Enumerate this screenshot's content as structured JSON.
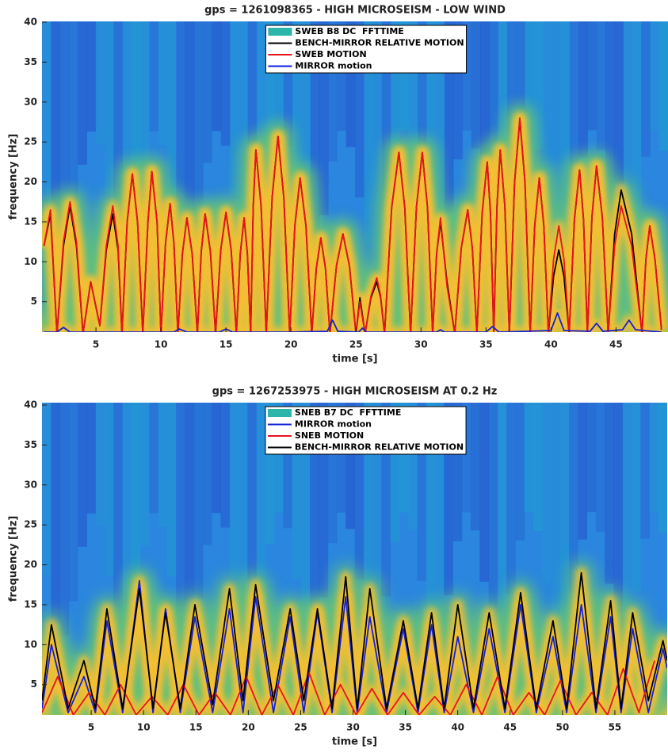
{
  "chart_data": [
    {
      "type": "line",
      "title": "gps = 1261098365 - HIGH MICROSEISM - LOW WIND",
      "xlabel": "time [s]",
      "ylabel": "frequency [Hz]",
      "xlim": [
        0.85,
        49
      ],
      "ylim": [
        1.2,
        40.1
      ],
      "xticks": [
        5,
        10,
        15,
        20,
        25,
        30,
        35,
        40,
        45
      ],
      "yticks": [
        5,
        10,
        15,
        20,
        25,
        30,
        35,
        40
      ],
      "legend": "top",
      "spectrogram": {
        "name": "SWEB B8 DC  FFTTIME",
        "color": "#2cb5a8"
      },
      "series": [
        {
          "name": "BENCH-MIRROR RELATIVE MOTION",
          "color": "#000000",
          "x": [
            1.0,
            1.5,
            2.0,
            2.5,
            3.0,
            3.5,
            4.0,
            4.6,
            5.3,
            5.8,
            6.3,
            6.7,
            7.0,
            7.4,
            7.8,
            8.2,
            8.6,
            9.0,
            9.3,
            9.7,
            10.0,
            10.35,
            10.7,
            11.0,
            11.3,
            11.65,
            12.0,
            12.4,
            12.8,
            13.1,
            13.4,
            13.8,
            14.2,
            14.6,
            15.0,
            15.4,
            15.8,
            16.1,
            16.4,
            16.65,
            16.9,
            17.1,
            17.3,
            17.7,
            18.1,
            18.55,
            19.0,
            19.45,
            19.9,
            20.3,
            20.7,
            21.15,
            21.6,
            21.95,
            22.3,
            22.65,
            23.0,
            23.5,
            24.0,
            24.5,
            25.0,
            25.3,
            25.7,
            26.15,
            26.6,
            26.9,
            27.2,
            27.75,
            28.3,
            28.75,
            29.2,
            29.65,
            30.1,
            30.5,
            30.9,
            31.2,
            31.5,
            32.0,
            32.6,
            33.1,
            33.6,
            33.95,
            34.3,
            34.7,
            35.1,
            35.35,
            35.6,
            35.85,
            36.1,
            36.45,
            36.8,
            37.2,
            37.6,
            38.0,
            38.4,
            38.75,
            39.1,
            39.45,
            39.8,
            40.2,
            40.6,
            41.0,
            41.4,
            41.8,
            42.2,
            42.5,
            42.8,
            43.15,
            43.5,
            43.95,
            44.4,
            44.9,
            45.4,
            46.2,
            47.0,
            47.3,
            47.6,
            48.0,
            48.5
          ],
          "values": [
            12,
            16,
            1,
            12,
            17,
            12,
            1,
            7.5,
            2,
            11.5,
            16,
            11.5,
            1,
            15,
            21,
            15,
            1,
            15,
            21.3,
            15,
            1,
            12.3,
            17.3,
            12.3,
            1,
            11,
            15.5,
            11,
            1,
            11.3,
            16,
            11.3,
            1,
            11.5,
            16.2,
            11.5,
            1,
            11,
            15.5,
            11,
            1,
            17,
            24,
            17,
            1,
            18,
            25.7,
            18,
            1,
            14.5,
            20.5,
            14.5,
            1,
            9.2,
            13,
            9.2,
            1,
            9.5,
            13.5,
            9.5,
            1,
            5.5,
            1,
            5.5,
            7.5,
            5.5,
            1,
            16.8,
            23.7,
            16.8,
            1,
            16.8,
            23.7,
            16.8,
            1,
            11,
            15,
            7.5,
            1,
            11.7,
            16.5,
            11.7,
            1,
            16,
            22.5,
            16,
            1,
            17,
            24,
            17,
            1,
            20,
            27.8,
            20,
            1,
            14.5,
            20.5,
            14.5,
            1,
            8.2,
            11.5,
            8.2,
            1,
            15.3,
            21.5,
            15.3,
            1,
            15.6,
            22,
            15.6,
            1,
            13.5,
            19,
            13.5,
            1,
            10.3,
            14.5,
            10.3,
            1.5
          ]
        },
        {
          "name": "SWEB MOTION",
          "color": "#e8141c",
          "x": [
            1.0,
            1.5,
            2.0,
            2.5,
            3.0,
            3.5,
            4.0,
            4.6,
            5.3,
            5.8,
            6.3,
            6.7,
            7.0,
            7.4,
            7.8,
            8.2,
            8.6,
            9.0,
            9.3,
            9.7,
            10.0,
            10.35,
            10.7,
            11.0,
            11.3,
            11.65,
            12.0,
            12.4,
            12.8,
            13.1,
            13.4,
            13.8,
            14.2,
            14.6,
            15.0,
            15.4,
            15.8,
            16.1,
            16.4,
            16.65,
            16.9,
            17.1,
            17.3,
            17.7,
            18.1,
            18.55,
            19.0,
            19.45,
            19.9,
            20.3,
            20.7,
            21.15,
            21.6,
            21.95,
            22.3,
            22.65,
            23.0,
            23.5,
            24.0,
            24.5,
            25.0,
            25.3,
            25.7,
            26.15,
            26.6,
            26.9,
            27.2,
            27.75,
            28.3,
            28.75,
            29.2,
            29.65,
            30.1,
            30.5,
            30.9,
            31.2,
            31.5,
            32.0,
            32.6,
            33.1,
            33.6,
            33.95,
            34.3,
            34.7,
            35.1,
            35.35,
            35.6,
            35.85,
            36.1,
            36.45,
            36.8,
            37.2,
            37.6,
            38.0,
            38.4,
            38.75,
            39.1,
            39.45,
            39.8,
            40.2,
            40.6,
            41.0,
            41.4,
            41.8,
            42.2,
            42.5,
            42.8,
            43.15,
            43.5,
            43.95,
            44.4,
            44.9,
            45.4,
            46.2,
            47.0,
            47.3,
            47.6,
            48.0,
            48.5
          ],
          "values": [
            12,
            16.5,
            1,
            12.5,
            17.5,
            12.5,
            1,
            7.5,
            2,
            12,
            17,
            12,
            1,
            15,
            21,
            15,
            1,
            15,
            21.3,
            15,
            1,
            12.3,
            17.3,
            12.3,
            1,
            11,
            15.5,
            11,
            1,
            11.3,
            16,
            11.3,
            1,
            11.5,
            16.2,
            11.5,
            1,
            11,
            15.5,
            11,
            1,
            17,
            24,
            17,
            1,
            18,
            25.7,
            18,
            1,
            14.5,
            20.5,
            14.5,
            1,
            9.2,
            13,
            9.2,
            1,
            9.5,
            13.5,
            9.5,
            1,
            5,
            1,
            5.7,
            8,
            5.7,
            1,
            16.8,
            23.7,
            16.8,
            1,
            16.8,
            23.7,
            16.8,
            1,
            11,
            15.5,
            7,
            1,
            11.7,
            16.5,
            11.7,
            1,
            16,
            22.5,
            16,
            1,
            17,
            24,
            17,
            1,
            20,
            28,
            20,
            1,
            14.5,
            20.5,
            14.5,
            1,
            10.3,
            14.5,
            10.3,
            1,
            15.3,
            21.5,
            15.3,
            1,
            15.6,
            22,
            15.6,
            1,
            12,
            17,
            12,
            1,
            10.3,
            14.5,
            10.3,
            1.5
          ]
        },
        {
          "name": "MIRROR motion",
          "color": "#1420d8",
          "x": [
            1,
            2,
            2.5,
            3,
            8,
            11,
            11.4,
            12,
            14.5,
            15,
            15.5,
            20,
            22.8,
            23.2,
            23.6,
            25.2,
            25.5,
            25.8,
            28,
            31.2,
            31.5,
            31.8,
            35,
            35.5,
            36,
            40,
            40.5,
            41,
            43,
            43.5,
            44,
            45.5,
            46,
            46.5,
            48.5
          ],
          "values": [
            1.2,
            1.2,
            1.8,
            1.2,
            1.2,
            1.2,
            1.6,
            1.2,
            1.2,
            1.6,
            1.2,
            1.2,
            1.3,
            2.7,
            1.3,
            1.2,
            1.7,
            1.2,
            1.2,
            1.2,
            1.5,
            1.2,
            1.2,
            1.9,
            1.2,
            1.4,
            3.6,
            1.4,
            1.3,
            2.3,
            1.3,
            1.5,
            2.7,
            1.5,
            1.2
          ]
        }
      ]
    },
    {
      "type": "line",
      "title": "gps = 1267253975 - HIGH MICROSEISM AT 0.2 Hz",
      "xlabel": "time [s]",
      "ylabel": "frequency [Hz]",
      "xlim": [
        0.3,
        60
      ],
      "ylim": [
        1.2,
        40.3
      ],
      "xticks": [
        5,
        10,
        15,
        20,
        25,
        30,
        35,
        40,
        45,
        50,
        55
      ],
      "yticks": [
        5,
        10,
        15,
        20,
        25,
        30,
        35,
        40
      ],
      "legend": "top",
      "spectrogram": {
        "name": "SNEB B7 DC  FFTTIME",
        "color": "#2cb5a8"
      },
      "series": [
        {
          "name": "MIRROR motion",
          "color": "#1420d8",
          "x": [
            0.3,
            1.2,
            2.8,
            4.3,
            5.4,
            6.5,
            8.0,
            9.6,
            10.9,
            12.1,
            13.5,
            14.9,
            16.6,
            18.2,
            19.5,
            20.7,
            22.4,
            24.0,
            25.3,
            26.6,
            28.0,
            29.3,
            30.4,
            31.6,
            33.2,
            34.8,
            36.2,
            37.5,
            38.7,
            40.0,
            41.5,
            43.0,
            44.5,
            46.0,
            47.5,
            49.1,
            50.4,
            51.8,
            53.2,
            54.6,
            55.6,
            56.7,
            58.2,
            59.6,
            60
          ],
          "values": [
            2,
            10,
            1.5,
            6,
            1.5,
            13,
            1.5,
            18,
            1.5,
            14.5,
            1.5,
            13.5,
            1.5,
            14.5,
            1.5,
            16,
            1.5,
            13.5,
            1.5,
            14,
            1.5,
            16,
            1.5,
            13.5,
            1.5,
            12,
            1.5,
            12.5,
            1.5,
            11,
            1.5,
            12,
            1.5,
            15,
            1.5,
            11,
            1.5,
            15,
            1.5,
            13.5,
            1.5,
            12,
            1.5,
            9.5,
            7
          ]
        },
        {
          "name": "SNEB MOTION",
          "color": "#e8141c",
          "x": [
            0.3,
            1.8,
            3.3,
            4.8,
            6.3,
            7.8,
            9.3,
            10.8,
            12.3,
            13.8,
            15.3,
            16.8,
            18.3,
            19.8,
            21.3,
            22.8,
            24.3,
            25.8,
            27.3,
            28.8,
            30.3,
            31.8,
            33.3,
            34.8,
            36.3,
            37.8,
            39.3,
            40.8,
            42.3,
            43.8,
            45.3,
            46.8,
            48.3,
            49.8,
            51.3,
            52.8,
            54.3,
            55.8,
            57.3,
            58.8
          ],
          "values": [
            1.5,
            6,
            1.2,
            4,
            1.2,
            5,
            1.2,
            3.5,
            1.2,
            5,
            1.2,
            4,
            1.2,
            6,
            1.2,
            5,
            1.2,
            6.5,
            1.2,
            5,
            1.2,
            4.5,
            1.2,
            4,
            1.2,
            3.5,
            1.2,
            5,
            1.2,
            6,
            1.2,
            4,
            1.2,
            5.5,
            1.2,
            4,
            1.2,
            7,
            1.5,
            8
          ]
        },
        {
          "name": "BENCH-MIRROR RELATIVE MOTION",
          "color": "#000000",
          "x": [
            0.3,
            1.2,
            2.8,
            4.3,
            5.4,
            6.5,
            8.0,
            9.6,
            10.9,
            12.1,
            13.5,
            14.9,
            16.6,
            18.2,
            19.5,
            20.7,
            22.4,
            24.0,
            25.3,
            26.6,
            28.0,
            29.3,
            30.4,
            31.6,
            33.2,
            34.8,
            36.2,
            37.5,
            38.7,
            40.0,
            41.5,
            43.0,
            44.5,
            46.0,
            47.5,
            49.1,
            50.4,
            51.8,
            53.2,
            54.6,
            55.6,
            56.7,
            58.2,
            59.6,
            60
          ],
          "values": [
            3,
            12.5,
            2,
            8,
            2,
            14.5,
            2,
            17,
            2,
            14,
            2,
            15,
            2.5,
            17,
            3,
            17.5,
            3,
            14.5,
            3,
            14.5,
            2,
            18.5,
            2,
            17,
            2,
            13,
            2,
            14,
            2,
            15,
            2,
            14,
            2,
            16.5,
            2,
            13,
            2,
            19,
            2,
            15.5,
            2,
            14,
            3,
            10.5,
            8
          ]
        }
      ]
    }
  ]
}
